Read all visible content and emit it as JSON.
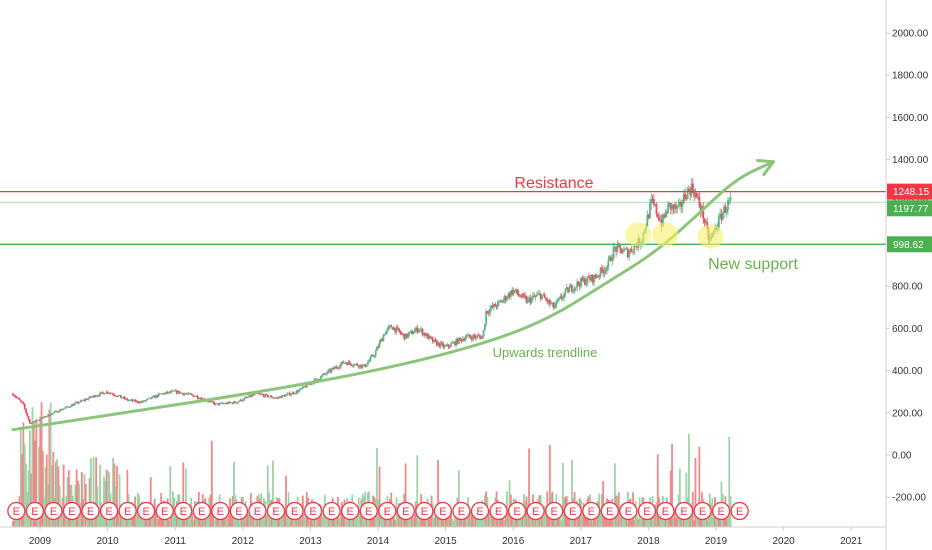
{
  "chart_data": {
    "type": "candlestick",
    "ylim": [
      -300,
      2200
    ],
    "xlim": [
      2008.6,
      2021.5
    ],
    "y_ticks": [
      "2000.00",
      "1800.00",
      "1600.00",
      "1400.00",
      "1200.00",
      "1000.00",
      "800.00",
      "600.00",
      "400.00",
      "200.00",
      "0.00",
      "-200.00"
    ],
    "y_tick_values": [
      2000,
      1800,
      1600,
      1400,
      1200,
      1000,
      800,
      600,
      400,
      200,
      0,
      -200
    ],
    "x_ticks": [
      "2009",
      "2010",
      "2011",
      "2012",
      "2013",
      "2014",
      "2015",
      "2016",
      "2017",
      "2018",
      "2019",
      "2020",
      "2021"
    ],
    "x_tick_values": [
      2009,
      2010,
      2011,
      2012,
      2013,
      2014,
      2015,
      2016,
      2017,
      2018,
      2019,
      2020,
      2021
    ],
    "price_path": [
      [
        2008.6,
        290
      ],
      [
        2008.75,
        240
      ],
      [
        2008.85,
        150
      ],
      [
        2009.0,
        170
      ],
      [
        2009.2,
        200
      ],
      [
        2009.5,
        240
      ],
      [
        2009.8,
        280
      ],
      [
        2010.0,
        300
      ],
      [
        2010.3,
        260
      ],
      [
        2010.5,
        250
      ],
      [
        2010.8,
        290
      ],
      [
        2011.0,
        300
      ],
      [
        2011.3,
        280
      ],
      [
        2011.6,
        240
      ],
      [
        2011.9,
        250
      ],
      [
        2012.2,
        290
      ],
      [
        2012.5,
        270
      ],
      [
        2012.8,
        300
      ],
      [
        2013.0,
        340
      ],
      [
        2013.2,
        380
      ],
      [
        2013.5,
        440
      ],
      [
        2013.8,
        420
      ],
      [
        2013.95,
        480
      ],
      [
        2014.1,
        580
      ],
      [
        2014.2,
        610
      ],
      [
        2014.4,
        560
      ],
      [
        2014.6,
        600
      ],
      [
        2014.8,
        540
      ],
      [
        2015.0,
        510
      ],
      [
        2015.3,
        560
      ],
      [
        2015.55,
        560
      ],
      [
        2015.6,
        680
      ],
      [
        2015.8,
        720
      ],
      [
        2016.0,
        780
      ],
      [
        2016.2,
        730
      ],
      [
        2016.4,
        760
      ],
      [
        2016.6,
        700
      ],
      [
        2016.8,
        780
      ],
      [
        2017.0,
        820
      ],
      [
        2017.2,
        840
      ],
      [
        2017.4,
        900
      ],
      [
        2017.5,
        980
      ],
      [
        2017.7,
        960
      ],
      [
        2017.9,
        1020
      ],
      [
        2018.05,
        1200
      ],
      [
        2018.2,
        1100
      ],
      [
        2018.3,
        1180
      ],
      [
        2018.45,
        1160
      ],
      [
        2018.55,
        1240
      ],
      [
        2018.65,
        1270
      ],
      [
        2018.8,
        1150
      ],
      [
        2018.9,
        1010
      ],
      [
        2019.0,
        1080
      ],
      [
        2019.1,
        1150
      ],
      [
        2019.2,
        1200
      ]
    ],
    "series": [
      {
        "values_type": "volume",
        "scale": "relative",
        "note": ""
      }
    ],
    "lines": [
      {
        "label": "Resistance",
        "value": 1248.15,
        "color": "#f23645"
      },
      {
        "label": "",
        "value": 1197.77,
        "color": "#4caf50"
      },
      {
        "label": "New support",
        "value": 998.62,
        "color": "#4caf50"
      }
    ],
    "price_labels": [
      {
        "text": "1248.15",
        "value": 1248.15,
        "bg": "#f23645"
      },
      {
        "text": "1197.77",
        "value": 1197.77,
        "bg": "#4caf50"
      },
      {
        "text": "998.62",
        "value": 998.62,
        "bg": "#4caf50"
      }
    ],
    "trendline": {
      "label": "Upwards trendline",
      "points": [
        [
          2008.6,
          120
        ],
        [
          2010.0,
          190
        ],
        [
          2012.0,
          285
        ],
        [
          2014.0,
          400
        ],
        [
          2015.5,
          520
        ],
        [
          2016.5,
          640
        ],
        [
          2017.4,
          820
        ],
        [
          2018.1,
          960
        ],
        [
          2018.7,
          1130
        ],
        [
          2019.3,
          1310
        ],
        [
          2019.85,
          1390
        ]
      ],
      "color": "#8bc57a"
    },
    "highlight_circles": [
      {
        "x": 2017.85,
        "y": 1045
      },
      {
        "x": 2018.25,
        "y": 1045
      },
      {
        "x": 2018.92,
        "y": 1035
      }
    ],
    "earnings_markers": {
      "label": "E",
      "count": 40,
      "x_start": 2008.65,
      "x_end": 2019.35
    }
  }
}
